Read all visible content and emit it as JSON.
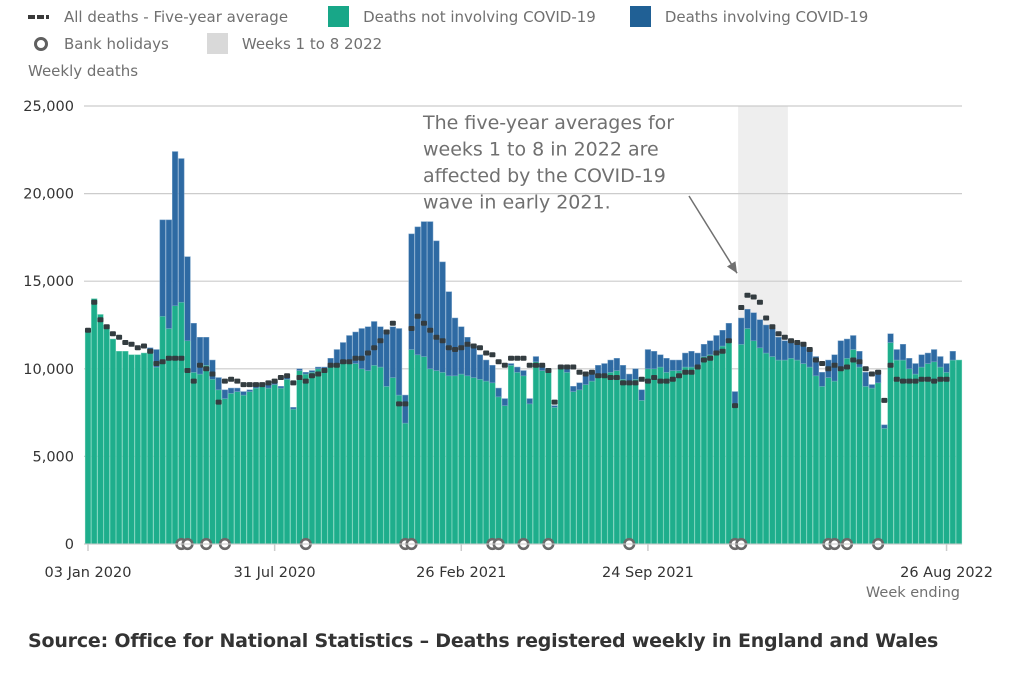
{
  "legend": {
    "row1": [
      {
        "label": "All deaths - Five-year average",
        "kind": "dash",
        "color": "#3a3a3a"
      },
      {
        "label": "Deaths not involving COVID-19",
        "kind": "box",
        "color": "#18a788"
      },
      {
        "label": "Deaths involving COVID-19",
        "kind": "box",
        "color": "#206095"
      }
    ],
    "row2": [
      {
        "label": "Bank holidays",
        "kind": "ring",
        "color": "#5f5f5f"
      },
      {
        "label": "Weeks 1 to 8 2022",
        "kind": "box",
        "color": "#d9d9d9"
      }
    ]
  },
  "source": "Source: Office for National Statistics – Deaths registered weekly in England and Wales",
  "chart_data": {
    "type": "bar",
    "stacked": true,
    "note": "Weekly values are approximate visual estimates read from bar heights in the screenshot; they are not printed in the image.",
    "title": "",
    "ylabel": "Weekly deaths",
    "xlabel": "Week ending",
    "ylim": [
      0,
      25000
    ],
    "yticks": [
      0,
      5000,
      10000,
      15000,
      20000,
      25000
    ],
    "ytick_labels": [
      "0",
      "5,000",
      "10,000",
      "15,000",
      "20,000",
      "25,000"
    ],
    "grid": true,
    "x_start": "03 Jan 2020",
    "x_end": "26 Aug 2022",
    "xticks": [
      {
        "index": 0,
        "label": "03 Jan 2020"
      },
      {
        "index": 30,
        "label": "31 Jul 2020"
      },
      {
        "index": 60,
        "label": "26 Feb 2021"
      },
      {
        "index": 90,
        "label": "24 Sep 2021"
      },
      {
        "index": 138,
        "label": "26 Aug 2022"
      }
    ],
    "highlight_band": {
      "label": "Weeks 1 to 8 2022",
      "start_index": 105,
      "end_index": 112,
      "color": "#d9d9d9"
    },
    "annotation": {
      "lines": [
        "The five-year averages for",
        "weeks 1 to 8 in 2022 are",
        "affected by the COVID-19",
        "wave in early 2021."
      ],
      "arrow_target_index": 104,
      "arrow_target_value": 15000
    },
    "bank_holiday_indices": [
      15,
      16,
      19,
      22,
      35,
      51,
      52,
      65,
      66,
      70,
      74,
      87,
      104,
      105,
      119,
      120,
      122,
      127
    ],
    "series": [
      {
        "name": "Deaths not involving COVID-19",
        "color": "#18a788",
        "values": [
          12200,
          14000,
          13100,
          12500,
          11700,
          11000,
          11000,
          10800,
          10800,
          10900,
          11100,
          10100,
          13000,
          12300,
          13600,
          13800,
          11600,
          9800,
          9700,
          10200,
          9400,
          8800,
          8300,
          8600,
          8700,
          8500,
          8700,
          8900,
          9000,
          8900,
          9100,
          8900,
          9400,
          7700,
          9900,
          9700,
          9800,
          10000,
          9900,
          10100,
          10200,
          10300,
          10400,
          10300,
          10000,
          9900,
          10200,
          10100,
          9000,
          9500,
          8500,
          6900,
          11100,
          10800,
          10700,
          10000,
          9900,
          9800,
          9600,
          9600,
          9700,
          9600,
          9500,
          9400,
          9300,
          9200,
          8400,
          7900,
          10200,
          9800,
          9600,
          8000,
          10400,
          9900,
          9800,
          7800,
          10100,
          9800,
          8700,
          8800,
          9100,
          9300,
          9600,
          9700,
          9800,
          9900,
          9400,
          9100,
          9400,
          8200,
          10000,
          10000,
          10100,
          9800,
          9900,
          9900,
          10100,
          10100,
          10100,
          10700,
          10800,
          11000,
          11300,
          11600,
          7800,
          11400,
          12300,
          11600,
          11200,
          10900,
          10700,
          10500,
          10500,
          10600,
          10500,
          10300,
          10100,
          9600,
          9000,
          9500,
          9300,
          10100,
          10600,
          11100,
          10100,
          9000,
          8900,
          9200,
          6600,
          11500,
          10500,
          10500,
          10000,
          9700,
          10100,
          10300,
          10400,
          10100,
          9800,
          10500,
          10500
        ],
        "note_values": "approximate"
      },
      {
        "name": "Deaths involving COVID-19",
        "color": "#206095",
        "values": [
          0,
          0,
          0,
          0,
          0,
          0,
          0,
          0,
          0,
          0,
          100,
          1000,
          5500,
          6200,
          8800,
          8200,
          4800,
          2800,
          2100,
          1600,
          1100,
          700,
          500,
          300,
          200,
          200,
          100,
          100,
          100,
          200,
          200,
          100,
          100,
          100,
          100,
          100,
          100,
          100,
          200,
          500,
          900,
          1200,
          1500,
          1800,
          2300,
          2500,
          2500,
          2300,
          3200,
          2900,
          3800,
          1600,
          6600,
          7300,
          7700,
          8400,
          7400,
          6300,
          4800,
          3300,
          2700,
          2200,
          1800,
          1400,
          1200,
          1000,
          500,
          400,
          100,
          300,
          300,
          300,
          300,
          300,
          200,
          100,
          100,
          200,
          300,
          400,
          500,
          500,
          600,
          600,
          700,
          700,
          800,
          600,
          600,
          600,
          1100,
          1000,
          700,
          800,
          600,
          600,
          800,
          900,
          800,
          700,
          800,
          900,
          900,
          1000,
          900,
          1500,
          1100,
          1600,
          1600,
          1600,
          1600,
          1300,
          1100,
          900,
          900,
          1000,
          1000,
          1100,
          800,
          1000,
          1500,
          1500,
          1100,
          800,
          900,
          800,
          200,
          700,
          200,
          500,
          600,
          900,
          600,
          600,
          700,
          600,
          700,
          600,
          500,
          500
        ],
        "note_values": "approximate"
      },
      {
        "name": "All deaths - Five-year average",
        "kind": "dash",
        "color": "#3a3a3a",
        "values": [
          12200,
          13800,
          12800,
          12400,
          12000,
          11800,
          11500,
          11400,
          11200,
          11300,
          11000,
          10300,
          10400,
          10600,
          10600,
          10600,
          9900,
          9300,
          10200,
          10000,
          9700,
          8100,
          9300,
          9400,
          9300,
          9100,
          9100,
          9100,
          9100,
          9200,
          9300,
          9500,
          9600,
          9200,
          9500,
          9300,
          9600,
          9700,
          9900,
          10200,
          10200,
          10400,
          10400,
          10600,
          10600,
          10900,
          11200,
          11600,
          12100,
          12600,
          8000,
          8000,
          12300,
          13000,
          12600,
          12200,
          11800,
          11600,
          11200,
          11100,
          11200,
          11400,
          11300,
          11200,
          10900,
          10800,
          10400,
          10200,
          10600,
          10600,
          10600,
          10200,
          10200,
          10200,
          9900,
          8100,
          10100,
          10100,
          10100,
          9800,
          9700,
          9800,
          9600,
          9600,
          9500,
          9500,
          9200,
          9200,
          9200,
          9400,
          9300,
          9500,
          9300,
          9300,
          9400,
          9600,
          9800,
          9800,
          10100,
          10500,
          10600,
          10900,
          11000,
          11600,
          7900,
          13500,
          14200,
          14100,
          13800,
          12900,
          12400,
          12000,
          11800,
          11600,
          11500,
          11400,
          11100,
          10500,
          10300,
          10000,
          10200,
          10000,
          10100,
          10500,
          10400,
          10000,
          9700,
          9800,
          8200,
          10200,
          9400,
          9300,
          9300,
          9300,
          9400,
          9400,
          9300,
          9400,
          9400
        ],
        "note_values": "approximate"
      }
    ]
  }
}
